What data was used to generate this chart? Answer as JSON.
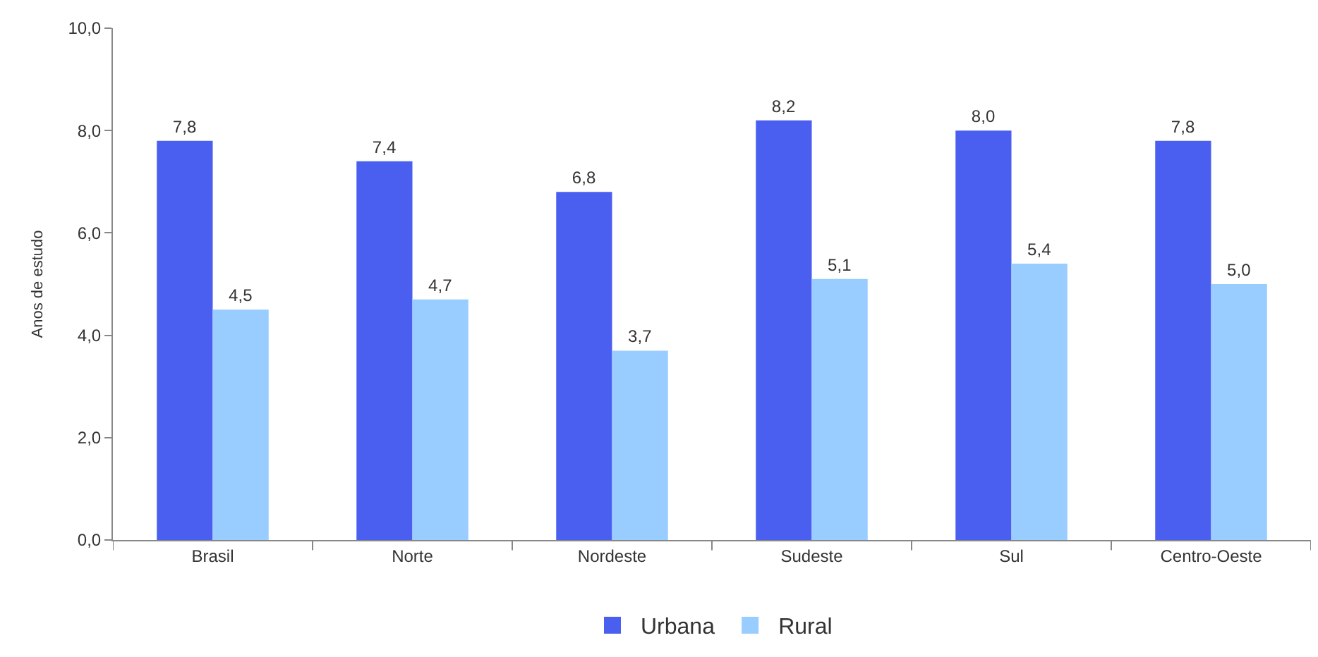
{
  "chart_data": {
    "type": "bar",
    "ylabel": "Anos de estudo",
    "categories": [
      "Brasil",
      "Norte",
      "Nordeste",
      "Sudeste",
      "Sul",
      "Centro-Oeste"
    ],
    "series": [
      {
        "name": "Urbana",
        "color": "#4a5ff0",
        "values": [
          7.8,
          7.4,
          6.8,
          8.2,
          8.0,
          7.8
        ],
        "value_labels": [
          "7,8",
          "7,4",
          "6,8",
          "8,2",
          "8,0",
          "7,8"
        ]
      },
      {
        "name": "Rural",
        "color": "#99ccff",
        "values": [
          4.5,
          4.7,
          3.7,
          5.1,
          5.4,
          5.0
        ],
        "value_labels": [
          "4,5",
          "4,7",
          "3,7",
          "5,1",
          "5,4",
          "5,0"
        ]
      }
    ],
    "ylim": [
      0,
      10
    ],
    "yticks": [
      {
        "value": 0,
        "label": "0,0"
      },
      {
        "value": 2,
        "label": "2,0"
      },
      {
        "value": 4,
        "label": "4,0"
      },
      {
        "value": 6,
        "label": "6,0"
      },
      {
        "value": 8,
        "label": "8,0"
      },
      {
        "value": 10,
        "label": "10,0"
      }
    ],
    "legend": "bottom"
  }
}
